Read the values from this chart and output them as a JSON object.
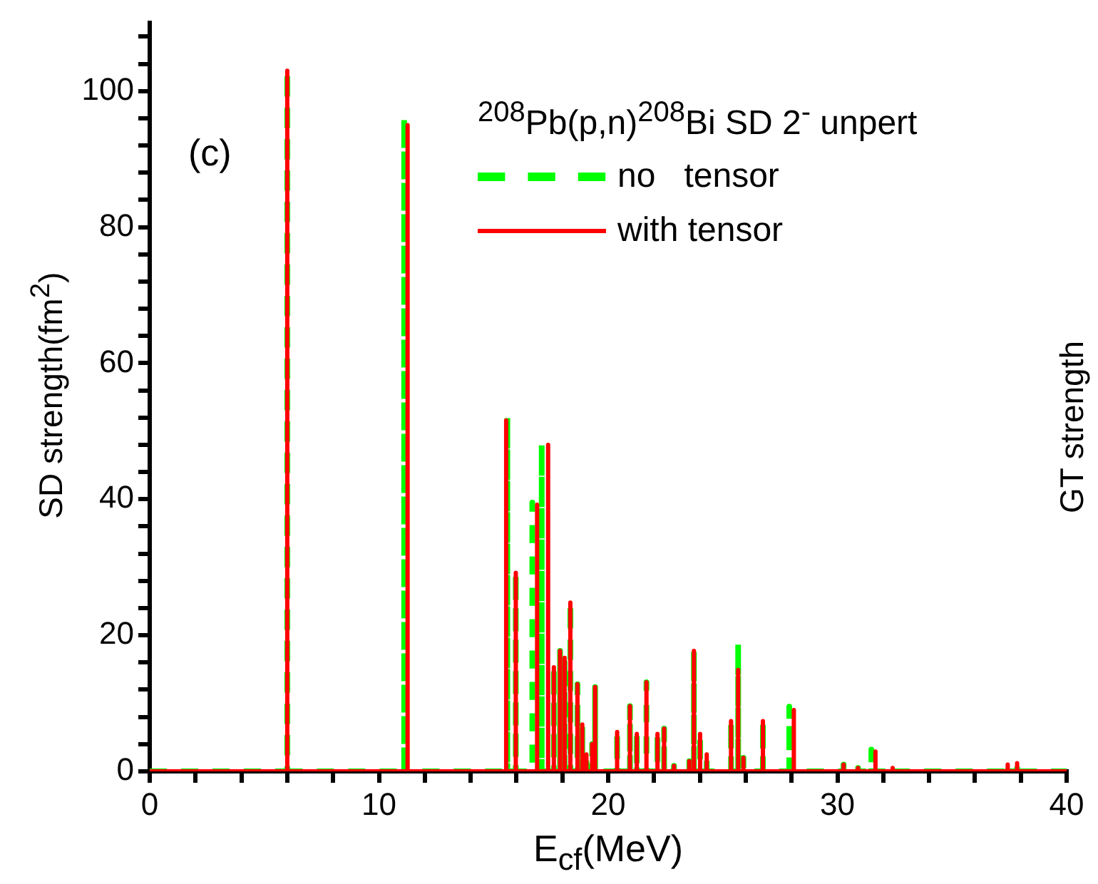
{
  "chart_data": {
    "type": "line",
    "xlabel": "E$_{cf}$(MeV)",
    "ylabel": "SD strength(fm$^{2}$)",
    "y2label": "GT strength",
    "legend_title": "$^{208}$Pb(p,n)$^{208}$Bi SD 2$^{-}$ unpert",
    "annotations": [
      "(c)"
    ],
    "xlim": [
      0,
      40
    ],
    "ylim": [
      0,
      110
    ],
    "xticks": [
      0,
      {
        "value": 2,
        "label": null
      },
      {
        "value": 4,
        "label": null
      },
      {
        "value": 6,
        "label": null
      },
      {
        "value": 8,
        "label": null
      },
      10,
      {
        "value": 12,
        "label": null
      },
      {
        "value": 14,
        "label": null
      },
      {
        "value": 16,
        "label": null
      },
      {
        "value": 18,
        "label": null
      },
      20,
      {
        "value": 22,
        "label": null
      },
      {
        "value": 24,
        "label": null
      },
      {
        "value": 26,
        "label": null
      },
      {
        "value": 28,
        "label": null
      },
      30,
      {
        "value": 32,
        "label": null
      },
      {
        "value": 34,
        "label": null
      },
      {
        "value": 36,
        "label": null
      },
      {
        "value": 38,
        "label": null
      },
      40
    ],
    "yticks": [
      0,
      {
        "value": 4,
        "label": null
      },
      {
        "value": 8,
        "label": null
      },
      {
        "value": 12,
        "label": null
      },
      {
        "value": 16,
        "label": null
      },
      20,
      {
        "value": 24,
        "label": null
      },
      {
        "value": 28,
        "label": null
      },
      {
        "value": 32,
        "label": null
      },
      {
        "value": 36,
        "label": null
      },
      40,
      {
        "value": 44,
        "label": null
      },
      {
        "value": 48,
        "label": null
      },
      {
        "value": 52,
        "label": null
      },
      {
        "value": 56,
        "label": null
      },
      60,
      {
        "value": 64,
        "label": null
      },
      {
        "value": 68,
        "label": null
      },
      {
        "value": 72,
        "label": null
      },
      {
        "value": 76,
        "label": null
      },
      80,
      {
        "value": 84,
        "label": null
      },
      {
        "value": 88,
        "label": null
      },
      {
        "value": 92,
        "label": null
      },
      {
        "value": 96,
        "label": null
      },
      100,
      {
        "value": 104,
        "label": null
      },
      {
        "value": 108,
        "label": null
      }
    ],
    "grid": false,
    "legend": "top right",
    "marker": "none",
    "series": [
      {
        "name": "no   tensor",
        "color": "#00ff00",
        "line_style": "dashed",
        "x": [
          0,
          6,
          6,
          6,
          11.1,
          11.1,
          11.1,
          15.6,
          15.6,
          15.6,
          15.97,
          15.97,
          15.97,
          16.69,
          16.69,
          16.69,
          17.1,
          17.1,
          17.1,
          17.63,
          17.63,
          17.63,
          17.9,
          17.9,
          17.9,
          18.1,
          18.1,
          18.1,
          18.35,
          18.35,
          18.35,
          18.66,
          18.66,
          18.66,
          18.87,
          18.87,
          18.87,
          19.05,
          19.05,
          19.05,
          19.3,
          19.3,
          19.3,
          19.43,
          19.43,
          19.43,
          20.39,
          20.39,
          20.39,
          20.95,
          20.95,
          20.95,
          21.25,
          21.25,
          21.25,
          21.67,
          21.67,
          21.67,
          22.15,
          22.15,
          22.15,
          22.44,
          22.44,
          22.44,
          22.87,
          22.87,
          22.87,
          23.54,
          23.54,
          23.54,
          23.74,
          23.74,
          23.74,
          24.01,
          24.01,
          24.01,
          24.3,
          24.3,
          24.3,
          25.36,
          25.36,
          25.36,
          25.67,
          25.67,
          25.67,
          25.9,
          25.9,
          25.9,
          26.75,
          26.75,
          26.75,
          27.9,
          27.9,
          27.9,
          30.27,
          30.27,
          30.27,
          30.9,
          30.9,
          30.9,
          31.48,
          31.48,
          31.48,
          32.41,
          32.41,
          32.41,
          37.43,
          37.43,
          37.43,
          37.84,
          37.84,
          37.84,
          40
        ],
        "values": [
          0,
          0,
          103,
          0,
          0,
          96,
          0,
          0,
          52,
          0,
          0,
          29.2,
          0,
          0,
          39.5,
          0,
          0,
          48,
          0,
          0,
          15.3,
          0,
          0,
          17.7,
          0,
          0,
          16.7,
          0,
          0,
          24.8,
          0,
          0,
          12.8,
          0,
          0,
          6.9,
          0,
          0,
          2.5,
          0,
          0,
          4,
          0,
          0,
          12.4,
          0,
          0,
          5.8,
          0,
          0,
          9.6,
          0,
          0,
          5.5,
          0,
          0,
          13.1,
          0,
          0,
          5.5,
          0,
          0,
          6.3,
          0,
          0,
          0.8,
          0,
          0,
          1.5,
          0,
          0,
          17.7,
          0,
          0,
          5.5,
          0,
          0,
          2.5,
          0,
          0,
          7.4,
          0,
          0,
          18.7,
          0,
          0,
          2,
          0,
          0,
          7.4,
          0,
          0,
          9.5,
          0,
          0,
          1,
          0,
          0,
          0.5,
          0,
          0,
          3.2,
          0,
          0,
          0.5,
          0,
          0,
          1,
          0,
          0,
          1.2,
          0,
          0
        ]
      },
      {
        "name": "with tensor",
        "color": "#ff0000",
        "line_style": "solid",
        "x": [
          0,
          6,
          6,
          6,
          11.25,
          11.25,
          11.25,
          15.55,
          15.55,
          15.55,
          15.97,
          15.97,
          15.97,
          16.9,
          16.9,
          16.9,
          17.38,
          17.38,
          17.38,
          17.63,
          17.63,
          17.63,
          17.9,
          17.9,
          17.9,
          18.1,
          18.1,
          18.1,
          18.35,
          18.35,
          18.35,
          18.66,
          18.66,
          18.66,
          18.87,
          18.87,
          18.87,
          19.05,
          19.05,
          19.05,
          19.3,
          19.3,
          19.3,
          19.43,
          19.43,
          19.43,
          20.39,
          20.39,
          20.39,
          20.95,
          20.95,
          20.95,
          21.25,
          21.25,
          21.25,
          21.67,
          21.67,
          21.67,
          22.15,
          22.15,
          22.15,
          22.44,
          22.44,
          22.44,
          22.87,
          22.87,
          22.87,
          23.54,
          23.54,
          23.54,
          23.74,
          23.74,
          23.74,
          24.01,
          24.01,
          24.01,
          24.3,
          24.3,
          24.3,
          25.36,
          25.36,
          25.36,
          25.67,
          25.67,
          25.67,
          25.9,
          25.9,
          25.9,
          26.75,
          26.75,
          26.75,
          28.1,
          28.1,
          28.1,
          30.27,
          30.27,
          30.27,
          30.9,
          30.9,
          30.9,
          31.66,
          31.66,
          31.66,
          32.41,
          32.41,
          32.41,
          37.43,
          37.43,
          37.43,
          37.84,
          37.84,
          37.84,
          40
        ],
        "values": [
          0,
          0,
          103,
          0,
          0,
          95,
          0,
          0,
          51.6,
          0,
          0,
          29.2,
          0,
          0,
          39.2,
          0,
          0,
          48,
          0,
          0,
          15.3,
          0,
          0,
          17.7,
          0,
          0,
          16.7,
          0,
          0,
          24.8,
          0,
          0,
          12.8,
          0,
          0,
          6.9,
          0,
          0,
          2.5,
          0,
          0,
          4,
          0,
          0,
          12.4,
          0,
          0,
          5.8,
          0,
          0,
          9.6,
          0,
          0,
          5.5,
          0,
          0,
          13.1,
          0,
          0,
          5.5,
          0,
          0,
          6.3,
          0,
          0,
          0.8,
          0,
          0,
          1.5,
          0,
          0,
          17.7,
          0,
          0,
          5.5,
          0,
          0,
          2.5,
          0,
          0,
          7.4,
          0,
          0,
          14.9,
          0,
          0,
          2,
          0,
          0,
          7.4,
          0,
          0,
          9,
          0,
          0,
          1,
          0,
          0,
          0.5,
          0,
          0,
          2.9,
          0,
          0,
          0.5,
          0,
          0,
          1,
          0,
          0,
          1.2,
          0,
          0
        ]
      }
    ]
  }
}
